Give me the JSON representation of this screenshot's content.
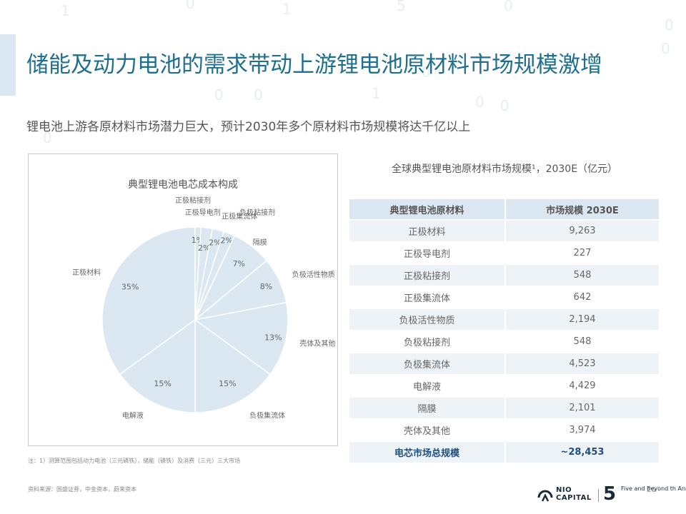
{
  "header": {
    "title": "储能及动力电池的需求带动上游锂电池原材料市场规模激增",
    "subtitle": "锂电池上游各原材料市场潜力巨大，预计2030年多个原材料市场规模将达千亿以上"
  },
  "chart_data": [
    {
      "type": "pie",
      "title": "典型锂电池电芯成本构成",
      "slices": [
        {
          "label": "正极材料",
          "value": 35,
          "value_label": "35%"
        },
        {
          "label": "正极粘接剂",
          "value": 1,
          "value_label": "1%"
        },
        {
          "label": "正极导电剂",
          "value": 2,
          "value_label": "2%"
        },
        {
          "label": "正极集流体",
          "value": 2,
          "value_label": "2%"
        },
        {
          "label": "负极粘接剂",
          "value": 2,
          "value_label": "2%"
        },
        {
          "label": "隔膜",
          "value": 7,
          "value_label": "7%"
        },
        {
          "label": "负极活性物质",
          "value": 8,
          "value_label": "8%"
        },
        {
          "label": "壳体及其他",
          "value": 13,
          "value_label": "13%"
        },
        {
          "label": "负极集流体",
          "value": 15,
          "value_label": "15%"
        },
        {
          "label": "电解液",
          "value": 15,
          "value_label": "15%"
        }
      ],
      "colors": {
        "fill": "#dbe7f1",
        "stroke": "#ffffff",
        "text": "#666666"
      }
    },
    {
      "type": "table",
      "title": "全球典型锂电池原材料市场规模¹，2030E（亿元）",
      "columns": [
        "典型锂电池原材料",
        "市场规模 2030E"
      ],
      "rows": [
        [
          "正极材料",
          "9,263"
        ],
        [
          "正极导电剂",
          "227"
        ],
        [
          "正极粘接剂",
          "548"
        ],
        [
          "正极集流体",
          "642"
        ],
        [
          "负极活性物质",
          "2,194"
        ],
        [
          "负极粘接剂",
          "548"
        ],
        [
          "负极集流体",
          "4,523"
        ],
        [
          "电解液",
          "4,429"
        ],
        [
          "隔膜",
          "2,101"
        ],
        [
          "壳体及其他",
          "3,974"
        ]
      ],
      "total": [
        "电芯市场总规模",
        "~28,453"
      ]
    }
  ],
  "footer": {
    "note": "注：1）测算范围包括动力电池（三元磷铁），储能（磷铁）及消费（三元）三大市场",
    "source": "资料来源：国盛证券，中金资本，蔚来资本",
    "logo_text": "NIO\nCAPITAL",
    "anniversary_number": "5",
    "anniversary_text": "Five and\nBeyond\nth Anniversary",
    "page_number": "20"
  },
  "colors": {
    "title": "#1f6f8f",
    "accent_bar": "#dbe7f1",
    "table_header": "#dbe7f1",
    "table_band": "#eef3f8",
    "total_text": "#1f4f7f"
  }
}
